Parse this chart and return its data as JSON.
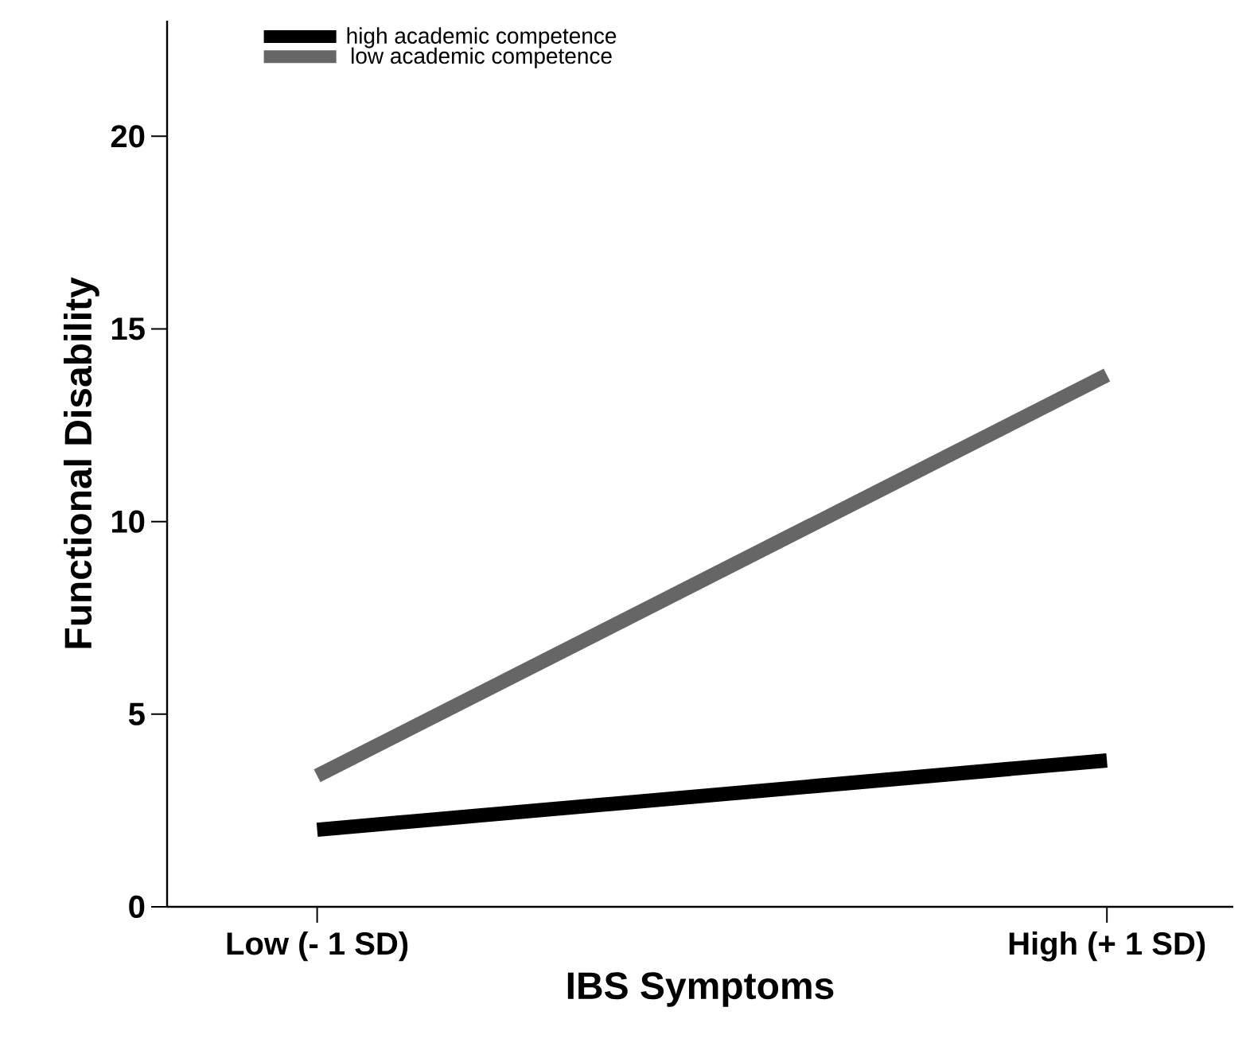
{
  "chart_data": {
    "type": "line",
    "xlabel": "IBS Symptoms",
    "ylabel": "Functional Disability",
    "categories": [
      "Low (- 1 SD)",
      "High (+ 1 SD)"
    ],
    "series": [
      {
        "name": "high academic competence",
        "color": "#000000",
        "values": [
          2.0,
          3.8
        ]
      },
      {
        "name": "low academic competence",
        "color": "#666666",
        "values": [
          3.4,
          13.8
        ]
      }
    ],
    "ylim": [
      0,
      23
    ],
    "yticks": [
      0,
      5,
      10,
      15,
      20
    ],
    "legend": "top left",
    "marker": "none",
    "line_style": "solid"
  }
}
